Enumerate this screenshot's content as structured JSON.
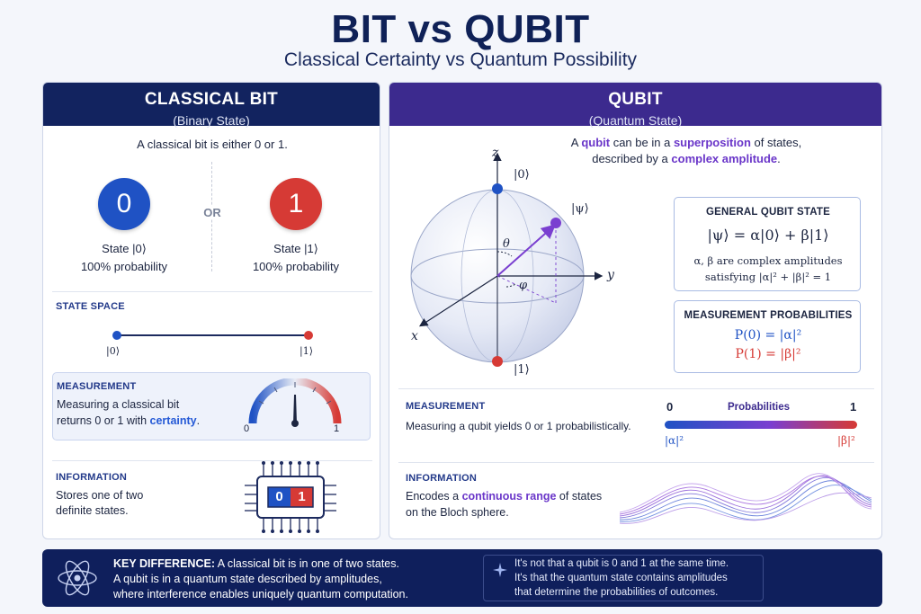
{
  "title": "BIT vs QUBIT",
  "subtitle": "Classical Certainty vs Quantum Possibility",
  "classical": {
    "header": "CLASSICAL BIT",
    "subheader": "(Binary State)",
    "intro": "A classical bit is either 0 or 1.",
    "or_label": "OR",
    "state0": {
      "digit": "0",
      "label": "State |0⟩",
      "prob": "100% probability",
      "color": "#1f52c4"
    },
    "state1": {
      "digit": "1",
      "label": "State |1⟩",
      "prob": "100% probability",
      "color": "#d63a35"
    },
    "state_space": {
      "title": "STATE SPACE",
      "left": "|0⟩",
      "right": "|1⟩"
    },
    "measurement": {
      "title": "MEASUREMENT",
      "text_a": "Measuring a classical bit",
      "text_b": "returns 0 or 1 with",
      "highlight": "certainty",
      "text_end": ".",
      "gauge_min": "0",
      "gauge_max": "1"
    },
    "information": {
      "title": "INFORMATION",
      "line1": "Stores one of two",
      "line2": "definite states.",
      "chip0": "0",
      "chip1": "1"
    }
  },
  "qubit": {
    "header": "QUBIT",
    "subheader": "(Quantum State)",
    "intro_a": "A",
    "intro_qubit": "qubit",
    "intro_b": "can be in a",
    "intro_super": "superposition",
    "intro_c": "of states,",
    "intro2_a": "described by a",
    "intro2_amp": "complex amplitude",
    "intro2_b": ".",
    "bloch": {
      "z": "z",
      "y": "y",
      "x": "x",
      "ket0": "|0⟩",
      "ket1": "|1⟩",
      "psi": "|ψ⟩",
      "theta": "θ",
      "phi": "φ"
    },
    "general_state": {
      "title": "GENERAL QUBIT STATE",
      "equation": "|ψ⟩ = α|0⟩ + β|1⟩",
      "note1": "α, β are complex amplitudes",
      "note2": "satisfying |α|² + |β|² = 1"
    },
    "meas_probs": {
      "title": "MEASUREMENT PROBABILITIES",
      "p0": "P(0) = |α|²",
      "p1": "P(1) = |β|²"
    },
    "measurement": {
      "title": "MEASUREMENT",
      "text": "Measuring a qubit yields 0 or 1 probabilistically.",
      "scale_min": "0",
      "scale_label": "Probabilities",
      "scale_max": "1",
      "left_amp": "|α|²",
      "right_amp": "|β|²"
    },
    "information": {
      "title": "INFORMATION",
      "line1_a": "Encodes a",
      "highlight": "continuous range",
      "line1_b": "of states",
      "line2": "on the Bloch sphere."
    }
  },
  "key_difference": {
    "label": "KEY DIFFERENCE:",
    "line1": "A classical bit is in one of two states.",
    "line2": "A qubit is in a quantum state described by amplitudes,",
    "line3": "where interference enables uniquely quantum computation.",
    "note1": "It's not that a qubit is 0 and 1 at the same time.",
    "note2": "It's that the quantum state contains amplitudes",
    "note3": "that determine the probabilities of outcomes."
  },
  "colors": {
    "navy": "#0f2157",
    "purple_header": "#3c2a8e",
    "blue": "#1f52c4",
    "red": "#d63a35",
    "purple": "#6a36c9"
  }
}
